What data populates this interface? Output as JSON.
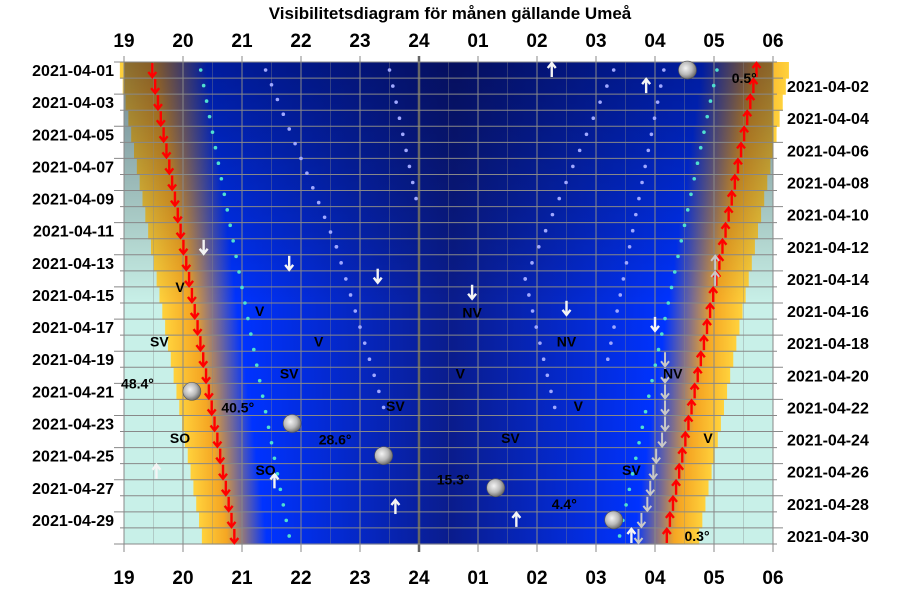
{
  "chart_data": {
    "type": "heatmap",
    "title": "Visibilitetsdiagram för månen gällande Umeå",
    "x_tick_labels": [
      "19",
      "20",
      "21",
      "22",
      "23",
      "24",
      "01",
      "02",
      "03",
      "04",
      "05",
      "06"
    ],
    "left_date_labels": [
      "2021-04-01",
      "2021-04-03",
      "2021-04-05",
      "2021-04-07",
      "2021-04-09",
      "2021-04-11",
      "2021-04-13",
      "2021-04-15",
      "2021-04-17",
      "2021-04-19",
      "2021-04-21",
      "2021-04-23",
      "2021-04-25",
      "2021-04-27",
      "2021-04-29"
    ],
    "right_date_labels": [
      "2021-04-02",
      "2021-04-04",
      "2021-04-06",
      "2021-04-08",
      "2021-04-10",
      "2021-04-12",
      "2021-04-14",
      "2021-04-16",
      "2021-04-18",
      "2021-04-20",
      "2021-04-22",
      "2021-04-24",
      "2021-04-26",
      "2021-04-28",
      "2021-04-30"
    ],
    "xlim": [
      19,
      30
    ],
    "day_range": [
      1,
      30
    ],
    "sunset_hours": [
      19.48,
      20.87
    ],
    "sunrise_hours": [
      29.72,
      28.2
    ],
    "altitude_labels": [
      {
        "text": "0.5°",
        "day": 1.5,
        "hour": 29.3
      },
      {
        "text": "48.4°",
        "day": 20.5,
        "hour": 18.95
      },
      {
        "text": "40.5°",
        "day": 22.0,
        "hour": 20.65
      },
      {
        "text": "28.6°",
        "day": 24.0,
        "hour": 22.3
      },
      {
        "text": "15.3°",
        "day": 26.5,
        "hour": 24.3
      },
      {
        "text": "4.4°",
        "day": 28.0,
        "hour": 26.25
      },
      {
        "text": "0.3°",
        "day": 30.0,
        "hour": 28.5
      }
    ],
    "direction_labels": [
      {
        "text": "V",
        "day": 14.5,
        "hour": 19.95
      },
      {
        "text": "V",
        "day": 16.0,
        "hour": 21.3
      },
      {
        "text": "NV",
        "day": 16.1,
        "hour": 24.9
      },
      {
        "text": "SV",
        "day": 17.9,
        "hour": 19.6
      },
      {
        "text": "V",
        "day": 17.9,
        "hour": 22.3
      },
      {
        "text": "NV",
        "day": 17.9,
        "hour": 26.5
      },
      {
        "text": "SV",
        "day": 19.9,
        "hour": 21.8
      },
      {
        "text": "V",
        "day": 19.9,
        "hour": 24.7
      },
      {
        "text": "NV",
        "day": 19.9,
        "hour": 28.3
      },
      {
        "text": "SV",
        "day": 21.9,
        "hour": 23.6
      },
      {
        "text": "V",
        "day": 21.9,
        "hour": 26.7
      },
      {
        "text": "SO",
        "day": 23.9,
        "hour": 19.95
      },
      {
        "text": "SV",
        "day": 23.9,
        "hour": 25.55
      },
      {
        "text": "V",
        "day": 23.9,
        "hour": 28.9
      },
      {
        "text": "SO",
        "day": 25.9,
        "hour": 21.4
      },
      {
        "text": "SV",
        "day": 25.9,
        "hour": 27.6
      }
    ],
    "moon_phases": [
      {
        "day": 1.0,
        "hour": 28.55
      },
      {
        "day": 21.0,
        "hour": 20.15
      },
      {
        "day": 23.0,
        "hour": 21.85
      },
      {
        "day": 25.0,
        "hour": 23.4
      },
      {
        "day": 27.0,
        "hour": 25.3
      },
      {
        "day": 29.0,
        "hour": 27.3
      }
    ],
    "moon_arrows": [
      {
        "day": 1.0,
        "hour": 26.25,
        "dir": "up"
      },
      {
        "day": 2.0,
        "hour": 27.85,
        "dir": "up"
      },
      {
        "day": 12.0,
        "hour": 20.35,
        "dir": "down"
      },
      {
        "day": 13.0,
        "hour": 21.8,
        "dir": "down"
      },
      {
        "day": 13.8,
        "hour": 23.3,
        "dir": "down"
      },
      {
        "day": 14.8,
        "hour": 24.9,
        "dir": "down"
      },
      {
        "day": 15.8,
        "hour": 26.5,
        "dir": "down"
      },
      {
        "day": 16.8,
        "hour": 28.0,
        "dir": "down"
      },
      {
        "day": 26.0,
        "hour": 19.55,
        "dir": "up"
      },
      {
        "day": 26.6,
        "hour": 21.55,
        "dir": "up"
      },
      {
        "day": 28.2,
        "hour": 23.6,
        "dir": "up"
      },
      {
        "day": 29.0,
        "hour": 25.65,
        "dir": "up"
      },
      {
        "day": 30.0,
        "hour": 27.6,
        "dir": "up"
      }
    ],
    "colors": {
      "twilight_light": "#c8f0e8",
      "night_dark": "#0a1c8c",
      "night_blue": "#0033ff",
      "twilight_orange": "#f5a623",
      "twilight_yellow": "#ffd23c",
      "sun_arrow": "#ff0000",
      "grid": "#888888"
    }
  }
}
